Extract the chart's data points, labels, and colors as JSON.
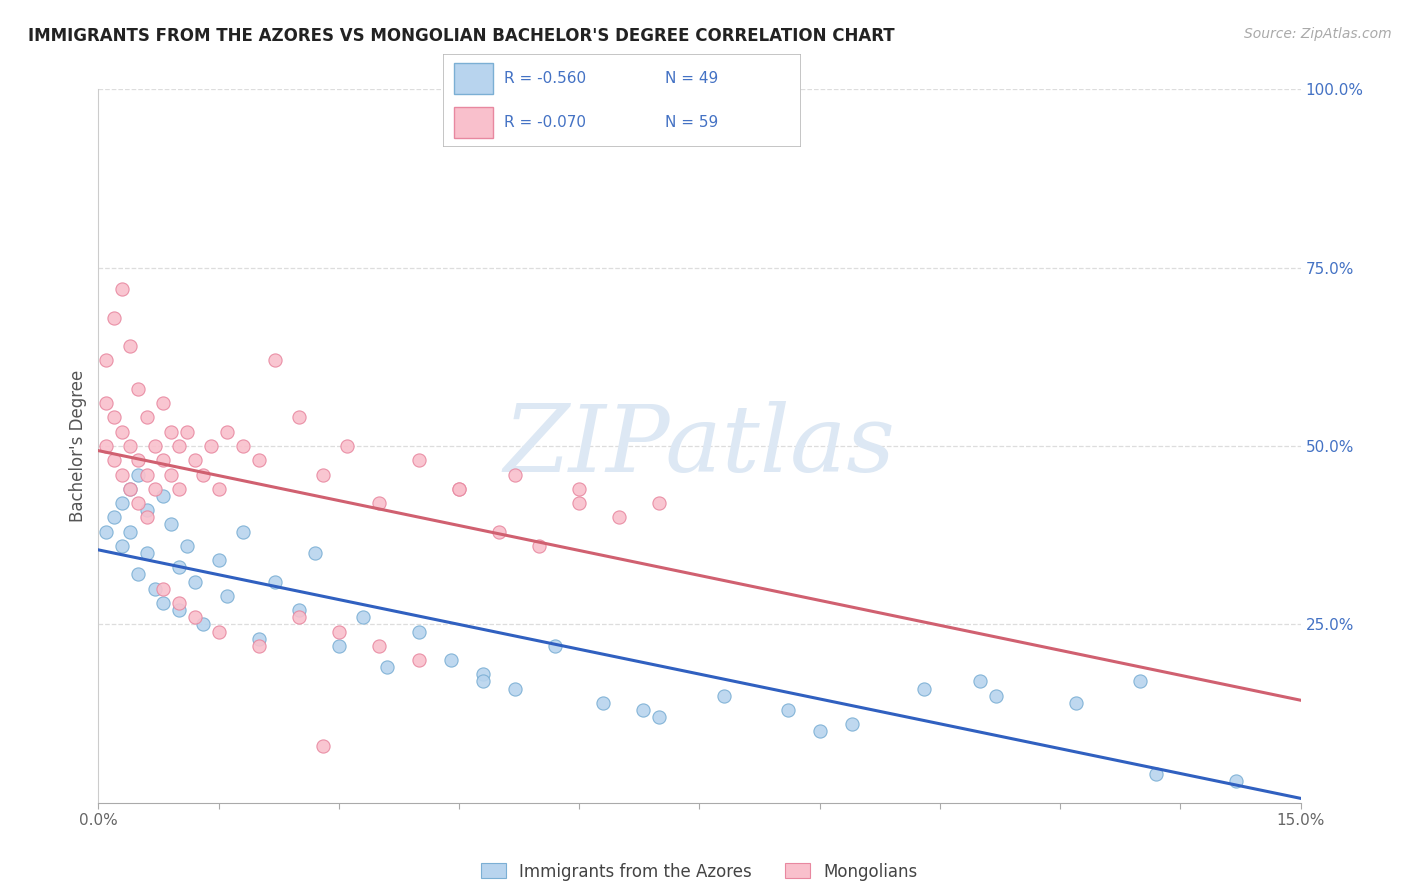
{
  "title": "IMMIGRANTS FROM THE AZORES VS MONGOLIAN BACHELOR'S DEGREE CORRELATION CHART",
  "source": "Source: ZipAtlas.com",
  "ylabel": "Bachelor's Degree",
  "blue_label": "Immigrants from the Azores",
  "pink_label": "Mongolians",
  "blue_R": -0.56,
  "blue_N": 49,
  "pink_R": -0.07,
  "pink_N": 59,
  "xlim": [
    0,
    0.15
  ],
  "ylim": [
    0,
    1.0
  ],
  "right_ytick_vals": [
    0.0,
    0.25,
    0.5,
    0.75,
    1.0
  ],
  "right_ytick_labels": [
    "",
    "25.0%",
    "50.0%",
    "75.0%",
    "100.0%"
  ],
  "blue_dot_face": "#b8d4ee",
  "blue_dot_edge": "#7bafd4",
  "pink_dot_face": "#f9c0cc",
  "pink_dot_edge": "#e888a0",
  "blue_line_color": "#3060c0",
  "pink_line_color": "#d06070",
  "grid_color": "#dddddd",
  "legend_text_color": "#4472c4",
  "legend_label_color": "#333333",
  "watermark_color": "#dde8f4",
  "title_color": "#222222",
  "source_color": "#aaaaaa",
  "ylabel_color": "#555555",
  "right_ytick_color": "#4472c4",
  "xtick_color": "#666666",
  "blue_x": [
    0.001,
    0.002,
    0.003,
    0.003,
    0.004,
    0.004,
    0.005,
    0.005,
    0.006,
    0.006,
    0.007,
    0.008,
    0.008,
    0.009,
    0.01,
    0.01,
    0.011,
    0.012,
    0.013,
    0.015,
    0.016,
    0.018,
    0.02,
    0.022,
    0.025,
    0.027,
    0.03,
    0.033,
    0.036,
    0.04,
    0.044,
    0.048,
    0.052,
    0.057,
    0.063,
    0.07,
    0.078,
    0.086,
    0.094,
    0.103,
    0.112,
    0.122,
    0.132,
    0.142,
    0.048,
    0.068,
    0.09,
    0.11,
    0.13
  ],
  "blue_y": [
    0.38,
    0.4,
    0.36,
    0.42,
    0.44,
    0.38,
    0.46,
    0.32,
    0.41,
    0.35,
    0.3,
    0.43,
    0.28,
    0.39,
    0.33,
    0.27,
    0.36,
    0.31,
    0.25,
    0.34,
    0.29,
    0.38,
    0.23,
    0.31,
    0.27,
    0.35,
    0.22,
    0.26,
    0.19,
    0.24,
    0.2,
    0.18,
    0.16,
    0.22,
    0.14,
    0.12,
    0.15,
    0.13,
    0.11,
    0.16,
    0.15,
    0.14,
    0.04,
    0.03,
    0.17,
    0.13,
    0.1,
    0.17,
    0.17
  ],
  "pink_x": [
    0.001,
    0.001,
    0.001,
    0.002,
    0.002,
    0.002,
    0.003,
    0.003,
    0.003,
    0.004,
    0.004,
    0.004,
    0.005,
    0.005,
    0.005,
    0.006,
    0.006,
    0.006,
    0.007,
    0.007,
    0.008,
    0.008,
    0.009,
    0.009,
    0.01,
    0.01,
    0.011,
    0.012,
    0.013,
    0.014,
    0.015,
    0.016,
    0.018,
    0.02,
    0.022,
    0.025,
    0.028,
    0.031,
    0.035,
    0.04,
    0.045,
    0.052,
    0.06,
    0.07,
    0.008,
    0.01,
    0.012,
    0.015,
    0.02,
    0.025,
    0.028,
    0.03,
    0.035,
    0.04,
    0.045,
    0.05,
    0.055,
    0.06,
    0.065
  ],
  "pink_y": [
    0.5,
    0.56,
    0.62,
    0.48,
    0.54,
    0.68,
    0.46,
    0.52,
    0.72,
    0.44,
    0.5,
    0.64,
    0.42,
    0.48,
    0.58,
    0.4,
    0.46,
    0.54,
    0.44,
    0.5,
    0.48,
    0.56,
    0.46,
    0.52,
    0.44,
    0.5,
    0.52,
    0.48,
    0.46,
    0.5,
    0.44,
    0.52,
    0.5,
    0.48,
    0.62,
    0.54,
    0.46,
    0.5,
    0.42,
    0.48,
    0.44,
    0.46,
    0.44,
    0.42,
    0.3,
    0.28,
    0.26,
    0.24,
    0.22,
    0.26,
    0.08,
    0.24,
    0.22,
    0.2,
    0.44,
    0.38,
    0.36,
    0.42,
    0.4
  ]
}
